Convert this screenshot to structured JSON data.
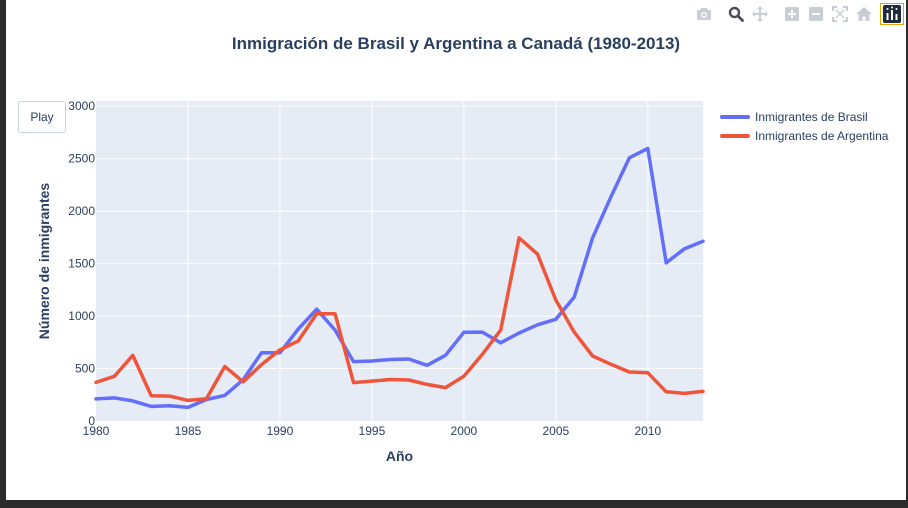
{
  "modebar": {
    "buttons": [
      "camera-icon",
      "zoom-icon",
      "pan-icon",
      "zoom-in-icon",
      "zoom-out-icon",
      "autoscale-icon",
      "reset-axes-icon",
      "plotly-logo-icon"
    ]
  },
  "controls": {
    "play_label": "Play"
  },
  "chart_data": {
    "type": "line",
    "title": "Inmigración de Brasil y Argentina a Canadá (1980-2013)",
    "xlabel": "Año",
    "ylabel": "Número de inmigrantes",
    "xlim": [
      1980,
      2013
    ],
    "ylim": [
      0,
      3050
    ],
    "xticks": [
      "1980",
      "1985",
      "1990",
      "1995",
      "2000",
      "2005",
      "2010"
    ],
    "yticks": [
      "0",
      "500",
      "1000",
      "1500",
      "2000",
      "2500",
      "3000"
    ],
    "grid": true,
    "legend_position": "right",
    "x": [
      1980,
      1981,
      1982,
      1983,
      1984,
      1985,
      1986,
      1987,
      1988,
      1989,
      1990,
      1991,
      1992,
      1993,
      1994,
      1995,
      1996,
      1997,
      1998,
      1999,
      2000,
      2001,
      2002,
      2003,
      2004,
      2005,
      2006,
      2007,
      2008,
      2009,
      2010,
      2011,
      2012,
      2013
    ],
    "series": [
      {
        "name": "Inmigrantes de Brasil",
        "color": "#636efa",
        "values": [
          211,
          220,
          192,
          139,
          145,
          130,
          205,
          244,
          394,
          650,
          650,
          877,
          1066,
          866,
          566,
          572,
          586,
          591,
          531,
          626,
          845,
          847,
          745,
          839,
          917,
          969,
          1181,
          1746,
          2138,
          2509,
          2598,
          1508,
          1642,
          1714
        ]
      },
      {
        "name": "Inmigrantes de Argentina",
        "color": "#ef553b",
        "values": [
          368,
          426,
          626,
          241,
          237,
          196,
          213,
          519,
          374,
          538,
          678,
          763,
          1023,
          1022,
          366,
          380,
          396,
          391,
          349,
          318,
          427,
          635,
          867,
          1745,
          1591,
          1153,
          847,
          620,
          540,
          467,
          459,
          278,
          263,
          282
        ]
      }
    ]
  }
}
